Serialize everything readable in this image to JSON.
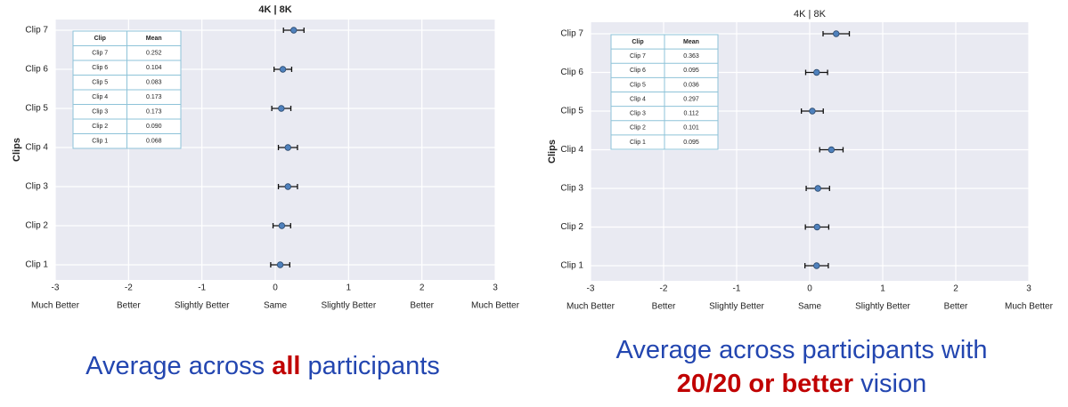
{
  "chart_data": [
    {
      "type": "errorbar",
      "title": "4K | 8K",
      "title_bold": true,
      "ylabel": "Clips",
      "categories": [
        "Clip 1",
        "Clip 2",
        "Clip 3",
        "Clip 4",
        "Clip 5",
        "Clip 6",
        "Clip 7"
      ],
      "values": [
        0.068,
        0.09,
        0.173,
        0.173,
        0.083,
        0.104,
        0.252
      ],
      "errors": [
        0.13,
        0.12,
        0.13,
        0.13,
        0.13,
        0.12,
        0.14
      ],
      "color": "#4f81bd",
      "grid": true,
      "xlim": [
        -3,
        3
      ],
      "xticks": [
        -3,
        -2,
        -1,
        0,
        1,
        2,
        3
      ],
      "xtick_descriptions": [
        "Much Better",
        "Better",
        "Slightly Better",
        "Same",
        "Slightly Better",
        "Better",
        "Much Better"
      ],
      "table": {
        "header": [
          "Clip",
          "Mean"
        ],
        "rows": [
          [
            "Clip 7",
            "0.252"
          ],
          [
            "Clip 6",
            "0.104"
          ],
          [
            "Clip 5",
            "0.083"
          ],
          [
            "Clip 4",
            "0.173"
          ],
          [
            "Clip 3",
            "0.173"
          ],
          [
            "Clip 2",
            "0.090"
          ],
          [
            "Clip 1",
            "0.068"
          ]
        ]
      },
      "caption": [
        [
          {
            "text": "Average across "
          },
          {
            "text": "all",
            "emphasis": true
          },
          {
            "text": " participants"
          }
        ]
      ]
    },
    {
      "type": "errorbar",
      "title": "4K | 8K",
      "title_bold": false,
      "ylabel": "Clips",
      "categories": [
        "Clip 1",
        "Clip 2",
        "Clip 3",
        "Clip 4",
        "Clip 5",
        "Clip 6",
        "Clip 7"
      ],
      "values": [
        0.095,
        0.101,
        0.112,
        0.297,
        0.036,
        0.095,
        0.363
      ],
      "errors": [
        0.16,
        0.16,
        0.16,
        0.16,
        0.15,
        0.15,
        0.18
      ],
      "color": "#4f81bd",
      "grid": true,
      "xlim": [
        -3,
        3
      ],
      "xticks": [
        -3,
        -2,
        -1,
        0,
        1,
        2,
        3
      ],
      "xtick_descriptions": [
        "Much Better",
        "Better",
        "Slightly Better",
        "Same",
        "Slightly Better",
        "Better",
        "Much Better"
      ],
      "table": {
        "header": [
          "Clip",
          "Mean"
        ],
        "rows": [
          [
            "Clip 7",
            "0.363"
          ],
          [
            "Clip 6",
            "0.095"
          ],
          [
            "Clip 5",
            "0.036"
          ],
          [
            "Clip 4",
            "0.297"
          ],
          [
            "Clip 3",
            "0.112"
          ],
          [
            "Clip 2",
            "0.101"
          ],
          [
            "Clip 1",
            "0.095"
          ]
        ]
      },
      "caption": [
        [
          {
            "text": "Average across participants with"
          }
        ],
        [
          {
            "text": "20/20 or better",
            "emphasis": true
          },
          {
            "text": " vision"
          }
        ]
      ]
    }
  ]
}
